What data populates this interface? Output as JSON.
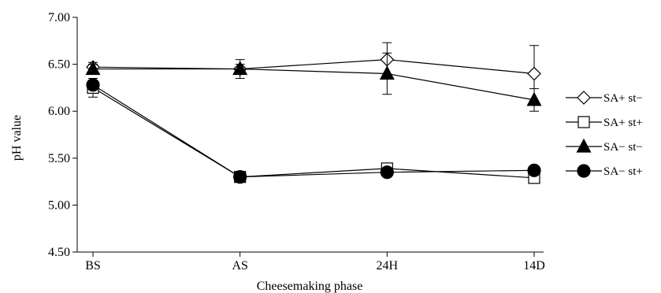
{
  "chart_data": {
    "type": "line",
    "xlabel": "Cheesemaking phase",
    "ylabel": "pH value",
    "categories": [
      "BS",
      "AS",
      "24H",
      "14D"
    ],
    "ylim": [
      4.5,
      7.0
    ],
    "yticks": [
      "4.50",
      "5.00",
      "5.50",
      "6.00",
      "6.50",
      "7.00"
    ],
    "legend_position": "right",
    "grid": false,
    "series": [
      {
        "name": "SA+ st−",
        "marker": "diamond-open",
        "values": [
          6.47,
          6.45,
          6.55,
          6.4
        ],
        "errors": [
          0.05,
          0.05,
          0.18,
          0.3
        ]
      },
      {
        "name": "SA+ st+",
        "marker": "square-open",
        "values": [
          6.25,
          5.3,
          5.39,
          5.29
        ],
        "errors": [
          0.1,
          0.03,
          0.03,
          0.03
        ]
      },
      {
        "name": "SA− st−",
        "marker": "triangle-filled",
        "values": [
          6.45,
          6.45,
          6.4,
          6.12
        ],
        "errors": [
          0.05,
          0.1,
          0.22,
          0.12
        ]
      },
      {
        "name": "SA− st+",
        "marker": "circle-filled",
        "values": [
          6.28,
          5.3,
          5.35,
          5.37
        ],
        "errors": [
          0.05,
          0.04,
          0.03,
          0.03
        ]
      }
    ]
  }
}
